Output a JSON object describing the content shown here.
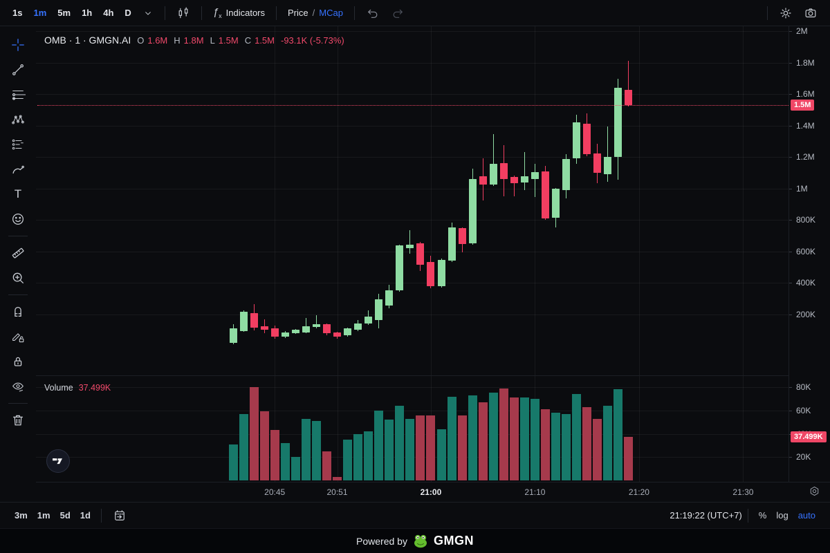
{
  "toolbar": {
    "timeframes": [
      {
        "label": "1s",
        "active": false
      },
      {
        "label": "1m",
        "active": true
      },
      {
        "label": "5m",
        "active": false
      },
      {
        "label": "1h",
        "active": false
      },
      {
        "label": "4h",
        "active": false
      },
      {
        "label": "D",
        "active": false
      }
    ],
    "indicators_label": "Indicators",
    "fx_glyph": "ƒ",
    "fx_sub": "x",
    "price_label": "Price",
    "divider": "/",
    "mcap_label": "MCap"
  },
  "legend": {
    "symbol": "OMB · 1 · GMGN.AI",
    "o_label": "O",
    "o": "1.6M",
    "h_label": "H",
    "h": "1.8M",
    "l_label": "L",
    "l": "1.5M",
    "c_label": "C",
    "c": "1.5M",
    "change": "-93.1K (-5.73%)"
  },
  "volume_pane": {
    "label": "Volume",
    "value": "37.499K"
  },
  "price_axis": {
    "current_badge": "1.5M"
  },
  "volume_axis": {
    "current_badge": "37.499K"
  },
  "bottom_bar": {
    "ranges": [
      "3m",
      "1m",
      "5d",
      "1d"
    ],
    "clock": "21:19:22 (UTC+7)",
    "percent": "%",
    "log": "log",
    "auto": "auto"
  },
  "footer": {
    "powered_by": "Powered by",
    "brand": "GMGN"
  },
  "misc": {
    "collapse_arrow": "‹"
  },
  "chart_data": {
    "type": "candlestick",
    "symbol": "OMB",
    "interval": "1m",
    "source": "GMGN.AI",
    "units": "price = market cap in thousands (K); volume in thousands (K)",
    "columns": [
      "time",
      "open",
      "high",
      "low",
      "close",
      "volume"
    ],
    "rows": [
      [
        "20:41",
        20,
        140,
        12,
        112,
        31
      ],
      [
        "20:42",
        95,
        226,
        90,
        218,
        57
      ],
      [
        "20:43",
        209,
        266,
        100,
        116,
        80
      ],
      [
        "20:44",
        125,
        169,
        81,
        103,
        59
      ],
      [
        "20:45",
        112,
        130,
        48,
        59,
        43
      ],
      [
        "20:46",
        59,
        95,
        52,
        86,
        32
      ],
      [
        "20:47",
        81,
        110,
        75,
        103,
        20
      ],
      [
        "20:48",
        86,
        178,
        80,
        125,
        53
      ],
      [
        "20:49",
        121,
        196,
        112,
        138,
        51
      ],
      [
        "20:50",
        138,
        145,
        68,
        81,
        25
      ],
      [
        "20:51",
        86,
        92,
        48,
        59,
        3
      ],
      [
        "20:52",
        68,
        115,
        60,
        112,
        35
      ],
      [
        "20:53",
        103,
        165,
        96,
        144,
        40
      ],
      [
        "20:54",
        143,
        226,
        136,
        187,
        42
      ],
      [
        "20:55",
        165,
        332,
        112,
        297,
        60
      ],
      [
        "20:56",
        257,
        389,
        240,
        354,
        52
      ],
      [
        "20:57",
        354,
        645,
        345,
        640,
        64
      ],
      [
        "20:58",
        622,
        736,
        587,
        644,
        53
      ],
      [
        "20:59",
        653,
        660,
        475,
        516,
        56
      ],
      [
        "21:00",
        534,
        574,
        365,
        380,
        56
      ],
      [
        "21:01",
        380,
        555,
        370,
        547,
        44
      ],
      [
        "21:02",
        543,
        785,
        535,
        754,
        72
      ],
      [
        "21:03",
        749,
        755,
        595,
        648,
        56
      ],
      [
        "21:04",
        653,
        1127,
        645,
        1061,
        73
      ],
      [
        "21:05",
        1079,
        1193,
        925,
        1026,
        67
      ],
      [
        "21:06",
        1026,
        1347,
        1018,
        1158,
        75
      ],
      [
        "21:07",
        1163,
        1277,
        950,
        1061,
        79
      ],
      [
        "21:08",
        1075,
        1082,
        950,
        1035,
        71
      ],
      [
        "21:09",
        1039,
        1233,
        990,
        1079,
        71
      ],
      [
        "21:10",
        1061,
        1158,
        945,
        1105,
        70
      ],
      [
        "21:11",
        1110,
        1145,
        800,
        811,
        61
      ],
      [
        "21:12",
        815,
        1005,
        754,
        1000,
        58
      ],
      [
        "21:13",
        991,
        1220,
        938,
        1189,
        57
      ],
      [
        "21:14",
        1193,
        1470,
        1158,
        1422,
        74
      ],
      [
        "21:15",
        1413,
        1479,
        1207,
        1220,
        63
      ],
      [
        "21:16",
        1224,
        1286,
        1035,
        1101,
        53
      ],
      [
        "21:17",
        1092,
        1395,
        1044,
        1202,
        64
      ],
      [
        "21:18",
        1202,
        1699,
        1057,
        1642,
        78
      ],
      [
        "21:19",
        1625,
        1813,
        1520,
        1532,
        37.499
      ]
    ],
    "price_axis_ticks": [
      {
        "label": "2M",
        "value": 2000
      },
      {
        "label": "1.8M",
        "value": 1800
      },
      {
        "label": "1.6M",
        "value": 1600
      },
      {
        "label": "1.4M",
        "value": 1400
      },
      {
        "label": "1.2M",
        "value": 1200
      },
      {
        "label": "1M",
        "value": 1000
      },
      {
        "label": "800K",
        "value": 800
      },
      {
        "label": "600K",
        "value": 600
      },
      {
        "label": "400K",
        "value": 400
      },
      {
        "label": "200K",
        "value": 200
      }
    ],
    "volume_axis_ticks": [
      {
        "label": "80K",
        "value": 80
      },
      {
        "label": "60K",
        "value": 60
      },
      {
        "label": "40K",
        "value": 40
      },
      {
        "label": "20K",
        "value": 20
      }
    ],
    "time_ticks": [
      {
        "label": "20:45",
        "idx": 4,
        "strong": false
      },
      {
        "label": "20:51",
        "idx": 10,
        "strong": false
      },
      {
        "label": "21:00",
        "idx": 19,
        "strong": true
      },
      {
        "label": "21:10",
        "idx": 29,
        "strong": false
      },
      {
        "label": "21:20",
        "idx": 39,
        "strong": false
      },
      {
        "label": "21:30",
        "idx": 49,
        "strong": false
      }
    ],
    "last": {
      "price": 1532,
      "volume": 37.499
    },
    "ylim_price": [
      0,
      2050
    ],
    "ylim_volume": [
      0,
      82
    ],
    "grid": true,
    "colors": {
      "up": "#8FDCA3",
      "down": "#F23E61",
      "vol_up": "#17796A",
      "vol_down": "#A63A4C",
      "accent": "#F0496A",
      "badge": "#EF4766",
      "blue": "#3672FF"
    }
  }
}
